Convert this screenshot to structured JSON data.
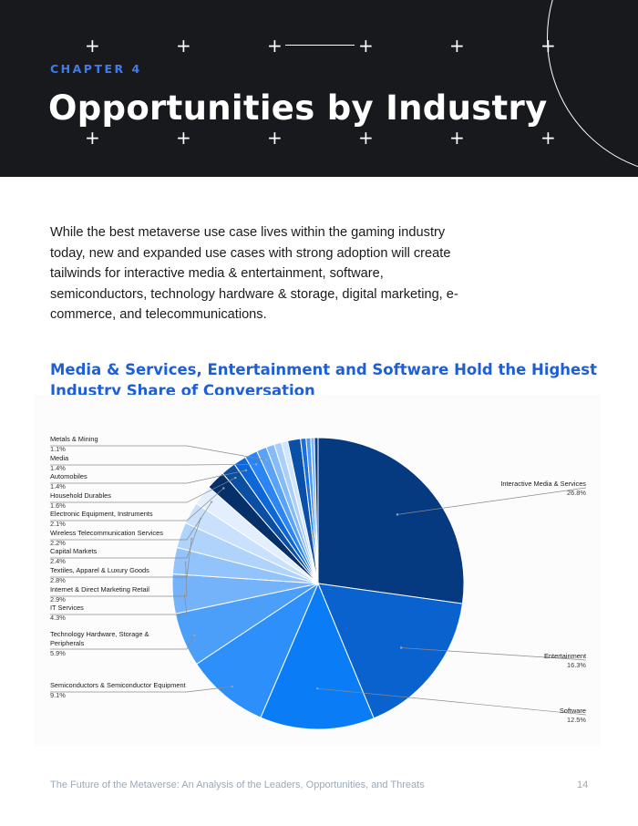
{
  "header": {
    "chapter": "CHAPTER 4",
    "title": "Opportunities by Industry"
  },
  "body": {
    "paragraph": "While the best metaverse use case lives within the gaming industry today, new and expanded use cases with strong adoption will create tailwinds for interactive media & entertainment, software, semiconductors, technology hardware & storage, digital marketing, e-commerce, and telecommunications."
  },
  "chart_data": {
    "type": "pie",
    "title": "Media & Services, Entertainment and Software Hold the Highest Industry Share of Conversation",
    "slices": [
      {
        "label": "Interactive Media & Services",
        "value": 26.8,
        "display": "26.8%",
        "color": "#053a80"
      },
      {
        "label": "Entertainment",
        "value": 16.3,
        "display": "16.3%",
        "color": "#0a62cf"
      },
      {
        "label": "Software",
        "value": 12.5,
        "display": "12.5%",
        "color": "#0a7cf5"
      },
      {
        "label": "Semiconductors & Semiconductor Equipment",
        "value": 9.1,
        "display": "9.1%",
        "color": "#2d8ff9"
      },
      {
        "label": "Technology Hardware, Storage & Peripherals",
        "value": 5.9,
        "display": "5.9%",
        "color": "#4b9ff8"
      },
      {
        "label": "IT Services",
        "value": 4.3,
        "display": "4.3%",
        "color": "#74b3fa"
      },
      {
        "label": "Internet & Direct Marketing Retail",
        "value": 2.9,
        "display": "2.9%",
        "color": "#93c3fb"
      },
      {
        "label": "Textiles, Apparel & Luxury Goods",
        "value": 2.8,
        "display": "2.8%",
        "color": "#b0d3fc"
      },
      {
        "label": "Capital Markets",
        "value": 2.4,
        "display": "2.4%",
        "color": "#c9e1fd"
      },
      {
        "label": "Wireless Telecommunication Services",
        "value": 2.2,
        "display": "2.2%",
        "color": "#e3effe"
      },
      {
        "label": "Electronic Equipment, Instruments",
        "value": 2.1,
        "display": "2.1%",
        "color": "#06306a"
      },
      {
        "label": "Household Durables",
        "value": 1.6,
        "display": "1.6%",
        "color": "#0b4fa3"
      },
      {
        "label": "Automobiles",
        "value": 1.4,
        "display": "1.4%",
        "color": "#0e67d9"
      },
      {
        "label": "Media",
        "value": 1.4,
        "display": "1.4%",
        "color": "#2b86f3"
      },
      {
        "label": "Metals & Mining",
        "value": 1.1,
        "display": "1.1%",
        "color": "#5aa2f6"
      },
      {
        "value": 0.9,
        "color": "#86bbf8"
      },
      {
        "value": 0.8,
        "color": "#a9cffa"
      },
      {
        "value": 0.7,
        "color": "#d2e6fc"
      },
      {
        "value": 1.4,
        "color": "#0b50a8"
      },
      {
        "value": 0.6,
        "color": "#1a6fe0"
      },
      {
        "value": 0.5,
        "color": "#4a97f5"
      },
      {
        "value": 0.4,
        "color": "#7eb6f8"
      },
      {
        "value": 0.4,
        "color": "#0c3f88"
      }
    ]
  },
  "footer": {
    "text": "The Future of the Metaverse: An Analysis of the Leaders, Opportunities, and Threats",
    "page": "14"
  }
}
